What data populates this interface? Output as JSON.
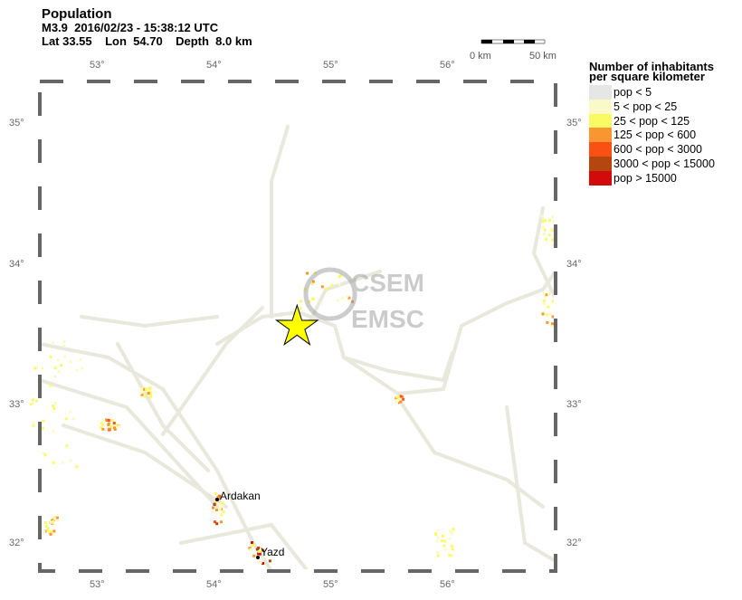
{
  "header": {
    "title": "Population",
    "event": "M3.9  2016/02/23 - 15:38:12 UTC",
    "location": "Lat 33.55    Lon  54.70    Depth  8.0 km"
  },
  "event": {
    "magnitude": "M3.9",
    "lat": 33.55,
    "lon": 54.7,
    "depth_km": 8.0,
    "marker": "yellow-star",
    "marker_color": "#ffff00"
  },
  "map": {
    "lon_ticks": [
      "53°",
      "54°",
      "55°",
      "56°"
    ],
    "lat_ticks": [
      "35°",
      "34°",
      "33°",
      "32°"
    ],
    "lon_range": [
      52.5,
      56.9
    ],
    "lat_range": [
      31.8,
      35.3
    ]
  },
  "places": [
    {
      "name": "Ardakan",
      "lat": 32.32,
      "lon": 54.02
    },
    {
      "name": "Yazd",
      "lat": 31.9,
      "lon": 54.37
    }
  ],
  "scale_bar": {
    "start": "0 km",
    "end": "50 km"
  },
  "watermark": {
    "line1": "CSEM",
    "line2": "EMSC"
  },
  "legend": {
    "title_line1": "Number of inhabitants",
    "title_line2": "per square kilometer",
    "items": [
      {
        "label": "pop < 5",
        "color": "#e6e6e6"
      },
      {
        "label": "5 < pop < 25",
        "color": "#fafac8"
      },
      {
        "label": "25 < pop < 125",
        "color": "#fafa64"
      },
      {
        "label": "125 < pop < 600",
        "color": "#fa9632"
      },
      {
        "label": "600 < pop < 3000",
        "color": "#fa5014"
      },
      {
        "label": "3000 < pop < 15000",
        "color": "#b4460f"
      },
      {
        "label": "pop > 15000",
        "color": "#d20a0a"
      }
    ]
  }
}
